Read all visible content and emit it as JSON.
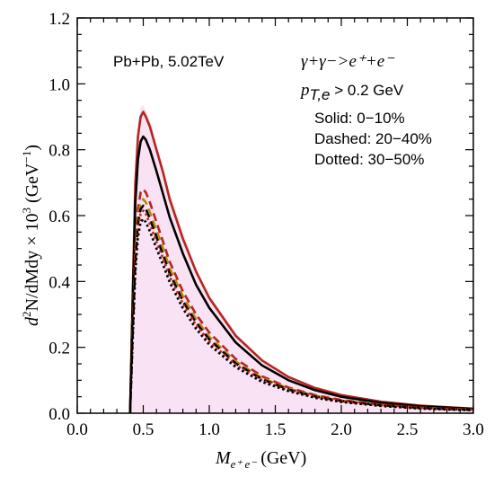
{
  "chart_data": {
    "type": "line",
    "title": "",
    "xlim": [
      0.0,
      3.0
    ],
    "ylim": [
      0.0,
      1.2
    ],
    "xticks": [
      "0.0",
      "0.5",
      "1.0",
      "1.5",
      "2.0",
      "2.5",
      "3.0"
    ],
    "yticks": [
      "0.0",
      "0.2",
      "0.4",
      "0.6",
      "0.8",
      "1.0",
      "1.2"
    ],
    "xlabel": {
      "main": "M",
      "sub": "e⁺ e⁻",
      "unit": " (GeV)"
    },
    "ylabel": {
      "d": "d",
      "sup2": "2",
      "rest": "N/dMdy × 10",
      "sup3": "3",
      "unit": " (GeV",
      "supm1": "−1",
      "close": ")"
    },
    "annotations": {
      "system": "Pb+Pb, 5.02TeV",
      "process": "γ+γ−>e⁺+e⁻",
      "cut_p": "p",
      "cut_sub": "T,e",
      "cut_rest": " > 0.2 GeV",
      "solid": "Solid: 0−10%",
      "dashed": "Dashed: 20−40%",
      "dotted": "Dotted: 30−50%"
    },
    "x": [
      0.4,
      0.42,
      0.44,
      0.46,
      0.48,
      0.5,
      0.52,
      0.55,
      0.6,
      0.65,
      0.7,
      0.8,
      0.9,
      1.0,
      1.2,
      1.4,
      1.6,
      1.8,
      2.0,
      2.3,
      2.6,
      3.0
    ],
    "band": {
      "color": "#f2bfe6",
      "upper": [
        0.0,
        0.4,
        0.75,
        0.88,
        0.93,
        0.935,
        0.92,
        0.89,
        0.82,
        0.75,
        0.67,
        0.55,
        0.44,
        0.36,
        0.245,
        0.165,
        0.115,
        0.08,
        0.058,
        0.037,
        0.025,
        0.015
      ]
    },
    "series": [
      {
        "style": "solid",
        "color": "#b3261e",
        "values": [
          0.0,
          0.36,
          0.7,
          0.84,
          0.9,
          0.915,
          0.9,
          0.87,
          0.8,
          0.73,
          0.65,
          0.53,
          0.43,
          0.35,
          0.235,
          0.16,
          0.11,
          0.077,
          0.055,
          0.035,
          0.023,
          0.014
        ]
      },
      {
        "style": "solid",
        "color": "#000000",
        "values": [
          0.0,
          0.33,
          0.64,
          0.77,
          0.825,
          0.84,
          0.83,
          0.8,
          0.735,
          0.665,
          0.595,
          0.485,
          0.39,
          0.32,
          0.215,
          0.145,
          0.1,
          0.07,
          0.05,
          0.032,
          0.021,
          0.013
        ]
      },
      {
        "style": "dashed",
        "color": "#b3261e",
        "values": [
          0.0,
          0.26,
          0.5,
          0.62,
          0.67,
          0.68,
          0.67,
          0.64,
          0.58,
          0.52,
          0.46,
          0.37,
          0.3,
          0.245,
          0.165,
          0.112,
          0.078,
          0.055,
          0.04,
          0.026,
          0.017,
          0.011
        ]
      },
      {
        "style": "dashed",
        "color": "#b8860b",
        "values": [
          0.0,
          0.25,
          0.48,
          0.595,
          0.64,
          0.65,
          0.64,
          0.61,
          0.555,
          0.5,
          0.44,
          0.355,
          0.285,
          0.232,
          0.157,
          0.107,
          0.075,
          0.053,
          0.038,
          0.025,
          0.016,
          0.01
        ]
      },
      {
        "style": "dashed",
        "color": "#000000",
        "values": [
          0.0,
          0.24,
          0.465,
          0.575,
          0.62,
          0.63,
          0.62,
          0.59,
          0.535,
          0.48,
          0.425,
          0.34,
          0.275,
          0.224,
          0.151,
          0.103,
          0.072,
          0.051,
          0.037,
          0.024,
          0.016,
          0.01
        ]
      },
      {
        "style": "dotted",
        "color": "#b3261e",
        "values": [
          0.0,
          0.235,
          0.455,
          0.56,
          0.605,
          0.615,
          0.605,
          0.575,
          0.52,
          0.47,
          0.415,
          0.333,
          0.268,
          0.218,
          0.147,
          0.1,
          0.07,
          0.05,
          0.036,
          0.023,
          0.015,
          0.01
        ]
      },
      {
        "style": "dotted",
        "color": "#000000",
        "values": [
          0.0,
          0.22,
          0.43,
          0.535,
          0.58,
          0.59,
          0.58,
          0.552,
          0.5,
          0.45,
          0.398,
          0.318,
          0.256,
          0.208,
          0.14,
          0.095,
          0.067,
          0.047,
          0.034,
          0.022,
          0.014,
          0.009
        ]
      }
    ]
  }
}
